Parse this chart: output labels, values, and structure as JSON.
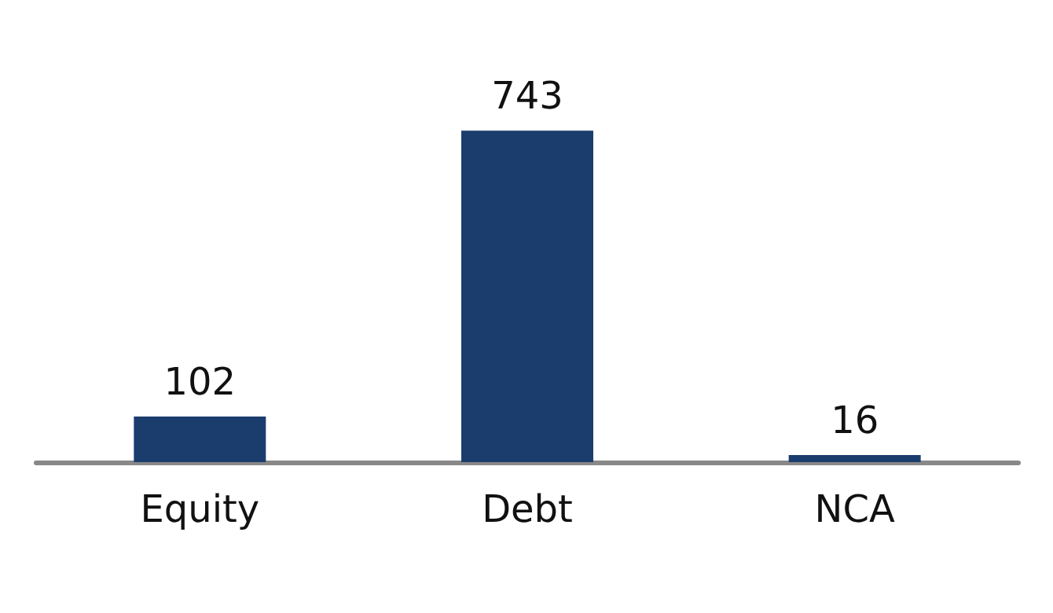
{
  "chart_data": {
    "type": "bar",
    "categories": [
      "Equity",
      "Debt",
      "NCA"
    ],
    "values": [
      102,
      743,
      16
    ],
    "color": "#1b3d6e",
    "data_labels": true
  }
}
